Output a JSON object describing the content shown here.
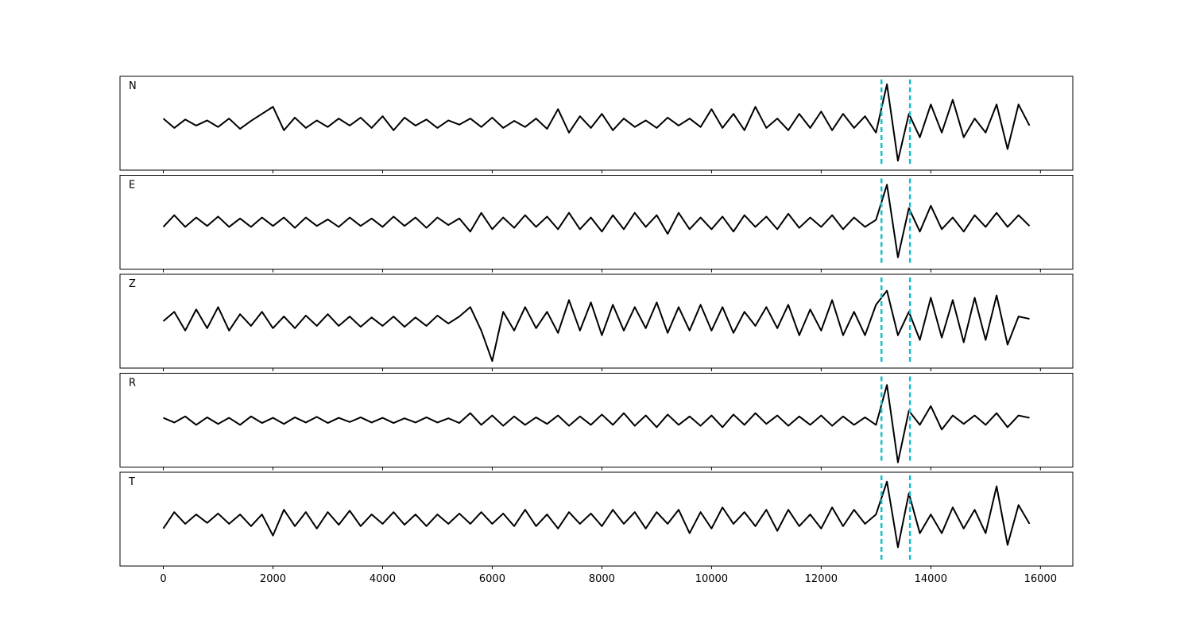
{
  "chart_data": {
    "type": "line",
    "layout": "stacked-panels",
    "x": [
      0,
      200,
      400,
      600,
      800,
      1000,
      1200,
      1400,
      1600,
      1800,
      2000,
      2200,
      2400,
      2600,
      2800,
      3000,
      3200,
      3400,
      3600,
      3800,
      4000,
      4200,
      4400,
      4600,
      4800,
      5000,
      5200,
      5400,
      5600,
      5800,
      6000,
      6200,
      6400,
      6600,
      6800,
      7000,
      7200,
      7400,
      7600,
      7800,
      8000,
      8200,
      8400,
      8600,
      8800,
      9000,
      9200,
      9400,
      9600,
      9800,
      10000,
      10200,
      10400,
      10600,
      10800,
      11000,
      11200,
      11400,
      11600,
      11800,
      12000,
      12200,
      12400,
      12600,
      12800,
      13000,
      13200,
      13400,
      13600,
      13800,
      14000,
      14200,
      14400,
      14600,
      14800,
      15000,
      15200,
      15400,
      15600,
      15800
    ],
    "xlim": [
      -790,
      16590
    ],
    "xticks": [
      0,
      2000,
      4000,
      6000,
      8000,
      10000,
      12000,
      14000,
      16000
    ],
    "ylim": [
      -1,
      1
    ],
    "vlines": [
      13100,
      13620
    ],
    "vline_color": "#17becf",
    "series": [
      {
        "name": "N",
        "color": "#000000",
        "values": [
          0.1,
          -0.1,
          0.08,
          -0.05,
          0.06,
          -0.08,
          0.1,
          -0.12,
          0.05,
          0.2,
          0.35,
          -0.15,
          0.12,
          -0.1,
          0.06,
          -0.08,
          0.1,
          -0.05,
          0.12,
          -0.1,
          0.15,
          -0.15,
          0.12,
          -0.05,
          0.08,
          -0.1,
          0.06,
          -0.03,
          0.1,
          -0.08,
          0.12,
          -0.1,
          0.05,
          -0.08,
          0.1,
          -0.12,
          0.3,
          -0.2,
          0.15,
          -0.1,
          0.2,
          -0.15,
          0.1,
          -0.08,
          0.06,
          -0.1,
          0.12,
          -0.05,
          0.1,
          -0.08,
          0.3,
          -0.1,
          0.2,
          -0.15,
          0.35,
          -0.1,
          0.1,
          -0.15,
          0.2,
          -0.1,
          0.25,
          -0.15,
          0.2,
          -0.1,
          0.15,
          -0.2,
          0.83,
          -0.8,
          0.2,
          -0.3,
          0.4,
          -0.2,
          0.5,
          -0.3,
          0.1,
          -0.2,
          0.4,
          -0.55,
          0.4,
          -0.05
        ]
      },
      {
        "name": "E",
        "color": "#000000",
        "values": [
          -0.1,
          0.15,
          -0.1,
          0.1,
          -0.08,
          0.12,
          -0.1,
          0.08,
          -0.1,
          0.1,
          -0.08,
          0.1,
          -0.12,
          0.1,
          -0.08,
          0.06,
          -0.1,
          0.1,
          -0.08,
          0.08,
          -0.1,
          0.12,
          -0.08,
          0.1,
          -0.12,
          0.1,
          -0.06,
          0.08,
          -0.2,
          0.2,
          -0.15,
          0.1,
          -0.12,
          0.15,
          -0.1,
          0.12,
          -0.15,
          0.2,
          -0.15,
          0.1,
          -0.2,
          0.15,
          -0.15,
          0.2,
          -0.1,
          0.15,
          -0.25,
          0.2,
          -0.15,
          0.1,
          -0.15,
          0.12,
          -0.2,
          0.15,
          -0.1,
          0.12,
          -0.15,
          0.18,
          -0.12,
          0.1,
          -0.1,
          0.15,
          -0.15,
          0.1,
          -0.1,
          0.05,
          0.8,
          -0.75,
          0.3,
          -0.2,
          0.35,
          -0.15,
          0.1,
          -0.2,
          0.15,
          -0.1,
          0.2,
          -0.1,
          0.15,
          -0.08
        ]
      },
      {
        "name": "Z",
        "color": "#000000",
        "values": [
          0,
          0.2,
          -0.2,
          0.25,
          -0.15,
          0.3,
          -0.2,
          0.15,
          -0.1,
          0.2,
          -0.15,
          0.1,
          -0.15,
          0.12,
          -0.1,
          0.15,
          -0.1,
          0.1,
          -0.12,
          0.08,
          -0.1,
          0.1,
          -0.12,
          0.08,
          -0.1,
          0.12,
          -0.05,
          0.1,
          0.3,
          -0.2,
          -0.85,
          0.2,
          -0.2,
          0.3,
          -0.15,
          0.2,
          -0.25,
          0.45,
          -0.2,
          0.4,
          -0.3,
          0.35,
          -0.2,
          0.3,
          -0.15,
          0.4,
          -0.25,
          0.3,
          -0.2,
          0.35,
          -0.2,
          0.3,
          -0.25,
          0.2,
          -0.1,
          0.3,
          -0.15,
          0.35,
          -0.3,
          0.25,
          -0.2,
          0.45,
          -0.3,
          0.2,
          -0.3,
          0.35,
          0.65,
          -0.3,
          0.2,
          -0.4,
          0.5,
          -0.35,
          0.45,
          -0.45,
          0.5,
          -0.4,
          0.55,
          -0.5,
          0.1,
          0.05
        ]
      },
      {
        "name": "R",
        "color": "#000000",
        "values": [
          0.05,
          -0.05,
          0.08,
          -0.1,
          0.06,
          -0.08,
          0.05,
          -0.1,
          0.08,
          -0.06,
          0.05,
          -0.08,
          0.06,
          -0.05,
          0.07,
          -0.06,
          0.05,
          -0.04,
          0.06,
          -0.05,
          0.05,
          -0.06,
          0.04,
          -0.05,
          0.06,
          -0.05,
          0.04,
          -0.06,
          0.15,
          -0.1,
          0.1,
          -0.12,
          0.08,
          -0.1,
          0.06,
          -0.08,
          0.1,
          -0.12,
          0.08,
          -0.1,
          0.12,
          -0.1,
          0.15,
          -0.12,
          0.1,
          -0.15,
          0.12,
          -0.1,
          0.08,
          -0.12,
          0.1,
          -0.15,
          0.12,
          -0.1,
          0.15,
          -0.08,
          0.1,
          -0.12,
          0.08,
          -0.1,
          0.1,
          -0.12,
          0.08,
          -0.1,
          0.06,
          -0.1,
          0.75,
          -0.9,
          0.2,
          -0.1,
          0.3,
          -0.2,
          0.1,
          -0.08,
          0.1,
          -0.1,
          0.15,
          -0.15,
          0.1,
          0.05
        ]
      },
      {
        "name": "T",
        "color": "#000000",
        "values": [
          -0.2,
          0.15,
          -0.1,
          0.1,
          -0.08,
          0.12,
          -0.1,
          0.1,
          -0.15,
          0.1,
          -0.35,
          0.2,
          -0.15,
          0.15,
          -0.2,
          0.15,
          -0.12,
          0.18,
          -0.15,
          0.1,
          -0.1,
          0.15,
          -0.12,
          0.1,
          -0.15,
          0.1,
          -0.1,
          0.12,
          -0.1,
          0.15,
          -0.1,
          0.12,
          -0.15,
          0.2,
          -0.15,
          0.1,
          -0.2,
          0.15,
          -0.1,
          0.12,
          -0.15,
          0.2,
          -0.1,
          0.15,
          -0.2,
          0.15,
          -0.1,
          0.2,
          -0.3,
          0.15,
          -0.2,
          0.25,
          -0.1,
          0.15,
          -0.15,
          0.2,
          -0.25,
          0.2,
          -0.15,
          0.1,
          -0.2,
          0.25,
          -0.15,
          0.2,
          -0.1,
          0.1,
          0.8,
          -0.6,
          0.55,
          -0.3,
          0.1,
          -0.3,
          0.25,
          -0.2,
          0.2,
          -0.3,
          0.7,
          -0.55,
          0.3,
          -0.1
        ]
      }
    ]
  }
}
